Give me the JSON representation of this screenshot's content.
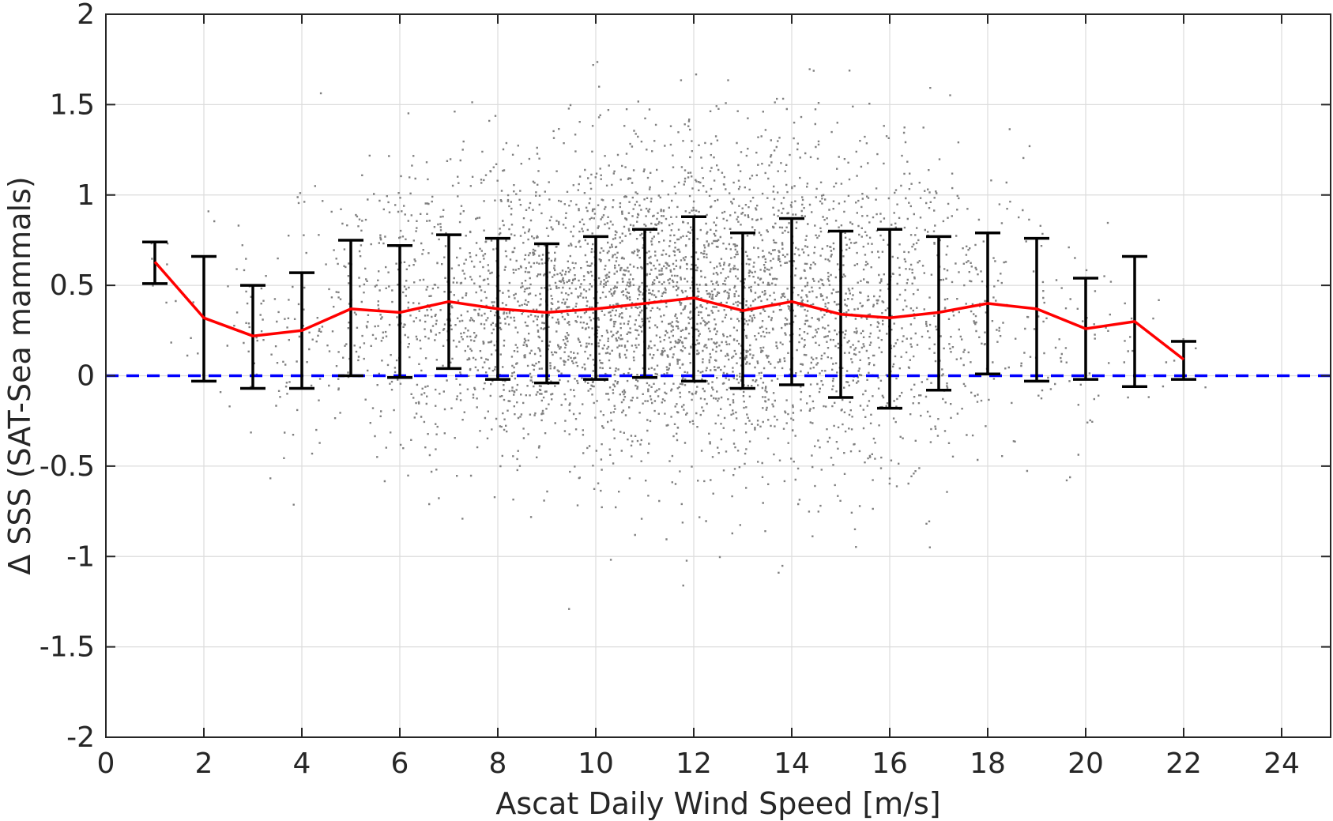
{
  "chart_data": {
    "type": "scatter",
    "title": "",
    "xlabel": "Ascat Daily Wind Speed [m/s]",
    "ylabel": "Δ SSS (SAT-Sea mammals)",
    "xlim": [
      0,
      25
    ],
    "ylim": [
      -2,
      2
    ],
    "x_ticks": [
      "0",
      "2",
      "4",
      "6",
      "8",
      "10",
      "12",
      "14",
      "16",
      "18",
      "20",
      "22",
      "24"
    ],
    "y_ticks": [
      "-2",
      "-1.5",
      "-1",
      "-0.5",
      "0",
      "0.5",
      "1",
      "1.5",
      "2"
    ],
    "grid": true,
    "legend": "none",
    "reference_line": {
      "y": 0,
      "style": "dashed",
      "color": "#0000ff"
    },
    "series": [
      {
        "type": "scatter",
        "color": "#808080",
        "note_points": "dense cloud of individual samples, roughly 0–22.5 m/s, centered near 0.35"
      },
      {
        "type": "line",
        "color": "#ff0000",
        "x": [
          1,
          2,
          3,
          4,
          5,
          6,
          7,
          8,
          9,
          10,
          11,
          12,
          13,
          14,
          15,
          16,
          17,
          18,
          19,
          20,
          21,
          22
        ],
        "y": [
          0.63,
          0.32,
          0.22,
          0.25,
          0.37,
          0.35,
          0.41,
          0.37,
          0.35,
          0.37,
          0.4,
          0.43,
          0.36,
          0.41,
          0.34,
          0.32,
          0.35,
          0.4,
          0.37,
          0.26,
          0.3,
          0.09
        ]
      },
      {
        "type": "errorbar",
        "color": "#000000",
        "x": [
          1,
          2,
          3,
          4,
          5,
          6,
          7,
          8,
          9,
          10,
          11,
          12,
          13,
          14,
          15,
          16,
          17,
          18,
          19,
          20,
          21,
          22
        ],
        "lower": [
          0.51,
          -0.03,
          -0.07,
          -0.07,
          0.0,
          -0.01,
          0.04,
          -0.02,
          -0.04,
          -0.02,
          -0.01,
          -0.03,
          -0.07,
          -0.05,
          -0.12,
          -0.18,
          -0.08,
          0.01,
          -0.03,
          -0.02,
          -0.06,
          -0.02
        ],
        "upper": [
          0.74,
          0.66,
          0.5,
          0.57,
          0.75,
          0.72,
          0.78,
          0.76,
          0.73,
          0.77,
          0.81,
          0.88,
          0.79,
          0.87,
          0.8,
          0.81,
          0.77,
          0.79,
          0.76,
          0.54,
          0.66,
          0.19
        ]
      }
    ]
  }
}
